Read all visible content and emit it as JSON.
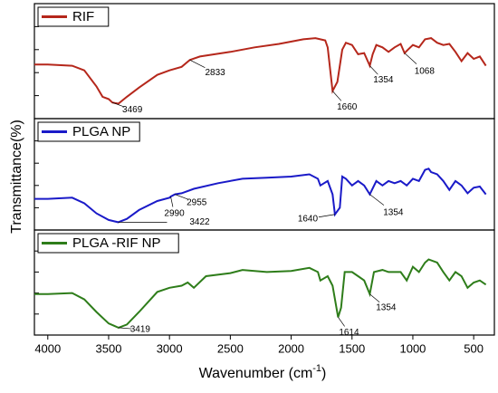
{
  "xlabel": {
    "text": "Wavenumber (cm",
    "sup": "-1",
    "end": ")"
  },
  "ylabel": "Transmittance(%)",
  "chart_data": [
    {
      "type": "line",
      "xlim": [
        4110,
        330
      ],
      "xticks": [
        4000,
        3500,
        3000,
        2500,
        2000,
        1500,
        1000,
        500
      ],
      "ylim": [
        0,
        100
      ],
      "yticks": [
        20,
        40,
        60,
        80
      ],
      "series": [
        {
          "name": "RIF",
          "color": "#b5271b",
          "x": [
            4110,
            4000,
            3800,
            3700,
            3600,
            3550,
            3500,
            3469,
            3420,
            3350,
            3250,
            3100,
            3000,
            2900,
            2833,
            2750,
            2500,
            2300,
            2100,
            1900,
            1800,
            1720,
            1700,
            1660,
            1620,
            1580,
            1550,
            1500,
            1450,
            1400,
            1354,
            1330,
            1300,
            1250,
            1200,
            1150,
            1100,
            1068,
            1040,
            1000,
            950,
            900,
            850,
            800,
            750,
            700,
            650,
            600,
            550,
            500,
            450,
            400
          ],
          "values": [
            47,
            47,
            46,
            42,
            28,
            19,
            17,
            14,
            13,
            19,
            27,
            38,
            42,
            45,
            51,
            54,
            58,
            62,
            65,
            69,
            70,
            68,
            62,
            24,
            32,
            60,
            66,
            64,
            56,
            57,
            46,
            56,
            64,
            62,
            58,
            62,
            65,
            57,
            60,
            64,
            62,
            69,
            70,
            66,
            64,
            65,
            58,
            50,
            57,
            52,
            54,
            46
          ]
        }
      ],
      "annotations": [
        {
          "x": 3469
        },
        {
          "x": 2833
        },
        {
          "x": 1660
        },
        {
          "x": 1354
        },
        {
          "x": 1068
        }
      ]
    },
    {
      "type": "line",
      "xlim": [
        4110,
        330
      ],
      "ylim": [
        0,
        100
      ],
      "yticks": [
        20,
        40,
        60,
        80
      ],
      "series": [
        {
          "name": "PLGA NP",
          "color": "#1a1ac8",
          "x": [
            4110,
            4000,
            3800,
            3700,
            3600,
            3500,
            3422,
            3350,
            3250,
            3100,
            3000,
            2990,
            2955,
            2900,
            2800,
            2600,
            2400,
            2200,
            2000,
            1850,
            1780,
            1760,
            1700,
            1660,
            1640,
            1600,
            1580,
            1550,
            1500,
            1450,
            1400,
            1354,
            1300,
            1250,
            1200,
            1150,
            1100,
            1050,
            1000,
            950,
            900,
            870,
            850,
            800,
            750,
            700,
            650,
            600,
            550,
            500,
            450,
            400
          ],
          "values": [
            28,
            28,
            29,
            24,
            15,
            9,
            7,
            10,
            18,
            26,
            29,
            30,
            32,
            33,
            37,
            42,
            46,
            47,
            48,
            50,
            46,
            40,
            44,
            32,
            14,
            20,
            48,
            46,
            40,
            44,
            40,
            32,
            44,
            40,
            44,
            42,
            44,
            40,
            46,
            44,
            54,
            55,
            52,
            50,
            44,
            36,
            44,
            40,
            33,
            38,
            39,
            32
          ]
        }
      ],
      "annotations": [
        {
          "x": 3422
        },
        {
          "x": 2990
        },
        {
          "x": 2955
        },
        {
          "x": 1640
        },
        {
          "x": 1354
        }
      ]
    },
    {
      "type": "line",
      "xlim": [
        4110,
        330
      ],
      "ylim": [
        0,
        100
      ],
      "yticks": [
        20,
        40,
        60,
        80
      ],
      "series": [
        {
          "name": "PLGA -RIF NP",
          "color": "#2e7d1a",
          "x": [
            4110,
            4000,
            3800,
            3700,
            3600,
            3500,
            3419,
            3350,
            3250,
            3100,
            3000,
            2900,
            2850,
            2800,
            2700,
            2500,
            2400,
            2200,
            2000,
            1850,
            1780,
            1760,
            1700,
            1660,
            1614,
            1590,
            1560,
            1500,
            1450,
            1400,
            1354,
            1320,
            1250,
            1200,
            1100,
            1050,
            1000,
            950,
            900,
            870,
            800,
            750,
            700,
            650,
            600,
            550,
            500,
            450,
            400
          ],
          "values": [
            39,
            39,
            40,
            34,
            22,
            11,
            7,
            10,
            22,
            41,
            45,
            47,
            50,
            45,
            56,
            59,
            62,
            60,
            61,
            64,
            60,
            52,
            56,
            47,
            17,
            26,
            60,
            60,
            56,
            52,
            39,
            60,
            62,
            60,
            60,
            52,
            65,
            60,
            69,
            72,
            69,
            60,
            52,
            60,
            56,
            45,
            50,
            52,
            48
          ]
        }
      ],
      "annotations": [
        {
          "x": 3419
        },
        {
          "x": 1614
        },
        {
          "x": 1354
        }
      ]
    }
  ]
}
